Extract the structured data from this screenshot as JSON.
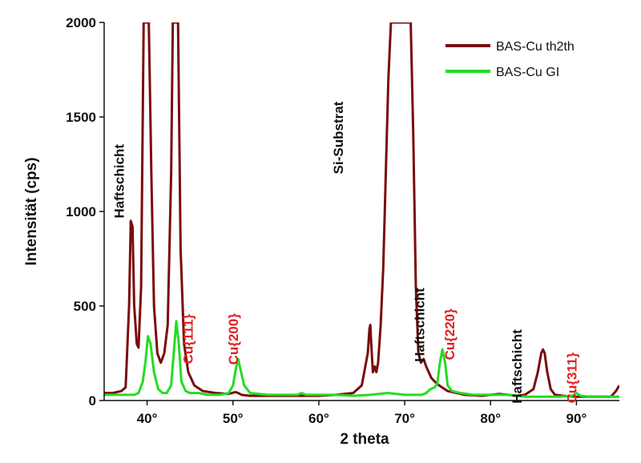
{
  "chart_data": {
    "type": "line",
    "xlabel": "2 theta",
    "ylabel": "Intensität (cps)",
    "xlim": [
      35,
      95
    ],
    "ylim": [
      0,
      2000
    ],
    "x_ticks": [
      40,
      50,
      60,
      70,
      80,
      90
    ],
    "x_tick_labels": [
      "40°",
      "50°",
      "60°",
      "70°",
      "80°",
      "90°"
    ],
    "y_ticks": [
      0,
      500,
      1000,
      1500,
      2000
    ],
    "y_tick_labels": [
      "0",
      "500",
      "1000",
      "1500",
      "2000"
    ],
    "grid": false,
    "legend_position": "top-right",
    "series": [
      {
        "name": "BAS-Cu th2th",
        "color": "#7a0c0c",
        "x": [
          35.0,
          36.0,
          37.0,
          37.5,
          37.9,
          38.1,
          38.3,
          38.5,
          38.8,
          39.0,
          39.3,
          39.6,
          39.8,
          40.0,
          40.2,
          40.5,
          40.8,
          41.2,
          41.6,
          42.0,
          42.4,
          42.8,
          43.0,
          43.3,
          43.6,
          43.9,
          44.3,
          44.8,
          45.5,
          46.5,
          48.0,
          49.5,
          50.3,
          50.6,
          51.0,
          52.0,
          54.0,
          56.0,
          58.0,
          60.0,
          62.0,
          64.0,
          65.0,
          65.7,
          65.9,
          66.0,
          66.1,
          66.3,
          66.5,
          66.7,
          66.9,
          67.2,
          67.5,
          67.8,
          68.1,
          68.4,
          68.7,
          69.0,
          69.6,
          70.3,
          70.7,
          71.0,
          71.3,
          71.6,
          71.9,
          72.2,
          72.5,
          72.8,
          73.1,
          73.5,
          74.0,
          75.0,
          77.0,
          79.0,
          81.0,
          82.0,
          83.0,
          84.0,
          85.0,
          85.5,
          85.9,
          86.1,
          86.3,
          86.6,
          87.0,
          87.5,
          88.5,
          90.0,
          92.0,
          94.0,
          94.6,
          95.0
        ],
        "y": [
          40,
          40,
          50,
          70,
          500,
          950,
          920,
          500,
          300,
          280,
          600,
          2000,
          2000,
          2000,
          2000,
          1200,
          500,
          250,
          200,
          250,
          400,
          1200,
          2000,
          2000,
          2000,
          800,
          300,
          150,
          80,
          50,
          40,
          35,
          45,
          40,
          30,
          25,
          25,
          25,
          25,
          25,
          30,
          40,
          80,
          250,
          380,
          400,
          300,
          150,
          180,
          150,
          200,
          400,
          700,
          1200,
          1700,
          2000,
          2000,
          2000,
          2000,
          2000,
          2000,
          1400,
          600,
          250,
          200,
          220,
          180,
          150,
          120,
          100,
          80,
          50,
          30,
          25,
          35,
          30,
          25,
          30,
          60,
          150,
          250,
          270,
          250,
          150,
          60,
          30,
          25,
          20,
          20,
          20,
          50,
          80
        ]
      },
      {
        "name": "BAS-Cu GI",
        "color": "#22dd22",
        "x": [
          35.0,
          36.0,
          37.0,
          38.0,
          38.5,
          39.0,
          39.5,
          39.8,
          40.1,
          40.4,
          40.8,
          41.3,
          41.8,
          42.3,
          42.8,
          43.1,
          43.4,
          43.7,
          44.0,
          44.5,
          45.0,
          46.0,
          47.0,
          48.5,
          49.5,
          50.0,
          50.3,
          50.6,
          50.9,
          51.3,
          52.0,
          54.0,
          56.0,
          57.5,
          58.0,
          58.5,
          60.0,
          62.0,
          64.0,
          66.0,
          68.0,
          70.0,
          71.0,
          72.0,
          72.5,
          73.0,
          73.5,
          73.8,
          74.1,
          74.4,
          74.7,
          75.0,
          75.5,
          76.5,
          78.0,
          80.0,
          82.0,
          84.0,
          86.0,
          88.0,
          89.5,
          90.0,
          90.5,
          91.5,
          93.0,
          95.0
        ],
        "y": [
          30,
          30,
          30,
          30,
          30,
          40,
          100,
          200,
          340,
          300,
          150,
          60,
          40,
          40,
          80,
          250,
          420,
          300,
          100,
          50,
          40,
          40,
          30,
          30,
          40,
          80,
          160,
          220,
          160,
          80,
          40,
          30,
          30,
          30,
          40,
          30,
          30,
          30,
          25,
          30,
          40,
          30,
          30,
          30,
          40,
          60,
          70,
          90,
          200,
          270,
          200,
          80,
          50,
          40,
          30,
          30,
          30,
          20,
          20,
          20,
          25,
          40,
          25,
          20,
          20,
          20
        ]
      }
    ],
    "annotations": [
      {
        "text": "Haftschicht",
        "x": 37.3,
        "y": 1160,
        "color": "#111111"
      },
      {
        "text": "Cu{111}",
        "x": 45.3,
        "y": 325,
        "color": "#e02020"
      },
      {
        "text": "Cu{200}",
        "x": 50.6,
        "y": 325,
        "color": "#e02020"
      },
      {
        "text": "Si-Substrat",
        "x": 62.8,
        "y": 1390,
        "color": "#111111"
      },
      {
        "text": "Haftschicht",
        "x": 72.3,
        "y": 400,
        "color": "#111111"
      },
      {
        "text": "Cu{220}",
        "x": 75.8,
        "y": 350,
        "color": "#e02020"
      },
      {
        "text": "Haftschicht",
        "x": 83.6,
        "y": 180,
        "color": "#111111"
      },
      {
        "text": "Cu{311}",
        "x": 90.0,
        "y": 120,
        "color": "#e02020"
      }
    ]
  }
}
